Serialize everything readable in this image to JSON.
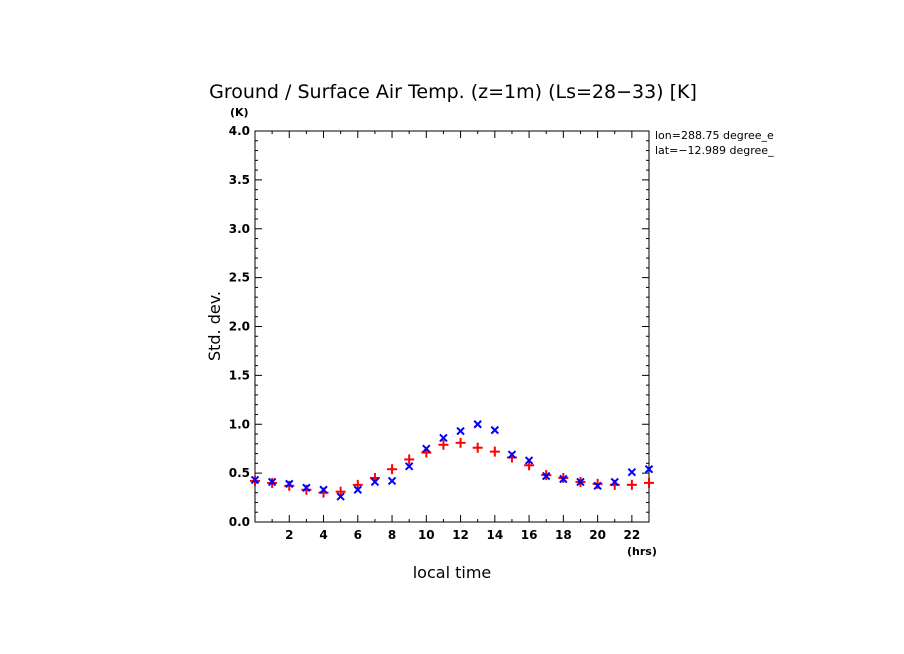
{
  "chart_data": {
    "type": "scatter",
    "title": "Ground / Surface Air Temp. (z=1m) (Ls=28−33) [K]",
    "xlabel": "local time",
    "ylabel": "Std. dev.",
    "x_unit": "(hrs)",
    "y_unit": "(K)",
    "xlim": [
      0,
      23
    ],
    "ylim": [
      0,
      4
    ],
    "x_ticks": [
      2,
      4,
      6,
      8,
      10,
      12,
      14,
      16,
      18,
      20,
      22
    ],
    "y_ticks": [
      "0.0",
      "0.5",
      "1.0",
      "1.5",
      "2.0",
      "2.5",
      "3.0",
      "3.5",
      "4.0"
    ],
    "info": [
      "lon=288.75 degree_e",
      "lat=−12.989 degree_"
    ],
    "series": [
      {
        "marker": "plus",
        "color": "#ff0000",
        "x": [
          0,
          1,
          2,
          3,
          4,
          5,
          6,
          7,
          8,
          9,
          10,
          11,
          12,
          13,
          14,
          15,
          16,
          17,
          18,
          19,
          20,
          21,
          22,
          23
        ],
        "values": [
          0.42,
          0.4,
          0.37,
          0.33,
          0.3,
          0.31,
          0.38,
          0.45,
          0.54,
          0.64,
          0.71,
          0.79,
          0.81,
          0.76,
          0.72,
          0.66,
          0.58,
          0.48,
          0.45,
          0.41,
          0.39,
          0.38,
          0.38,
          0.4
        ]
      },
      {
        "marker": "x",
        "color": "#0000ff",
        "x": [
          0,
          1,
          2,
          3,
          4,
          5,
          6,
          7,
          8,
          9,
          10,
          11,
          12,
          13,
          14,
          15,
          16,
          17,
          18,
          19,
          20,
          21,
          22,
          23
        ],
        "values": [
          0.43,
          0.41,
          0.39,
          0.35,
          0.33,
          0.26,
          0.33,
          0.41,
          0.42,
          0.57,
          0.75,
          0.86,
          0.93,
          1.0,
          0.94,
          0.69,
          0.63,
          0.47,
          0.44,
          0.41,
          0.37,
          0.41,
          0.51,
          0.54
        ]
      }
    ]
  }
}
